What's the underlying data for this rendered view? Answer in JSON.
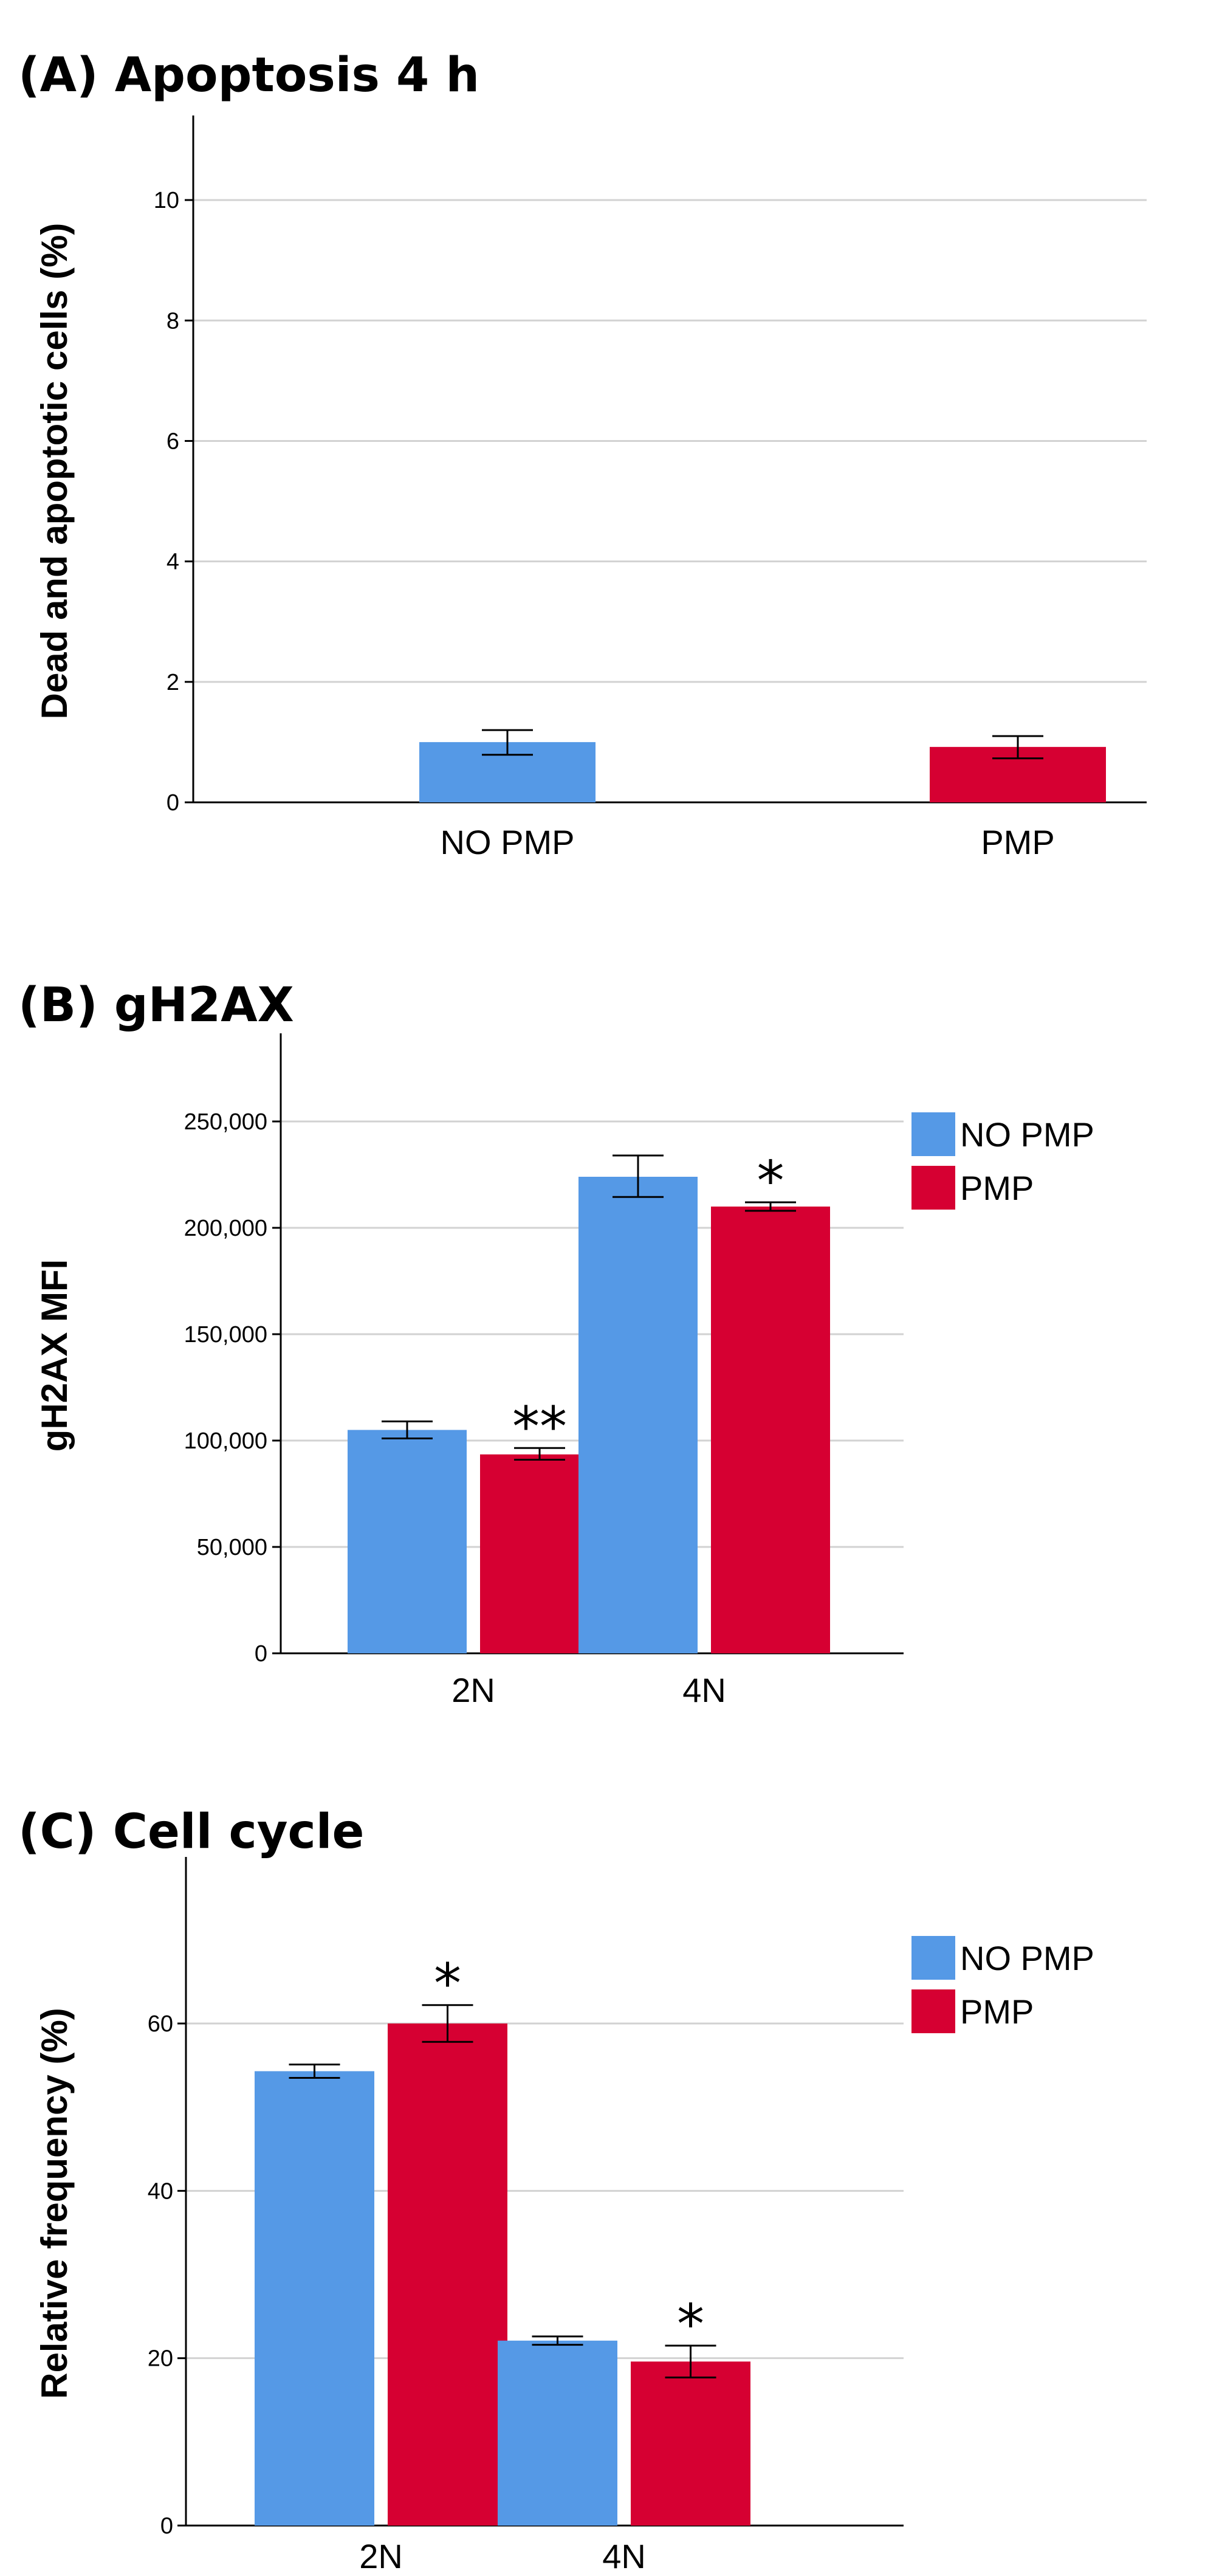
{
  "colors": {
    "no_pmp": "#5599e6",
    "pmp": "#d60032"
  },
  "chart_data": [
    {
      "type": "bar",
      "title": "(A) Apoptosis 4 h",
      "xlabel": "",
      "ylabel": "Dead and apoptotic cells (%)",
      "categories": [
        "NO PMP",
        "PMP"
      ],
      "values": [
        1.0,
        0.92
      ],
      "errors": [
        [
          0.79,
          1.2
        ],
        [
          0.73,
          1.1
        ]
      ],
      "bar_colors": [
        "#5599e6",
        "#d60032"
      ],
      "ylim": [
        0,
        11
      ],
      "yticks": [
        0,
        2,
        4,
        6,
        8,
        10
      ],
      "ytick_labels": [
        "0",
        "2",
        "4",
        "6",
        "8",
        "10"
      ],
      "grid": true,
      "legend": null
    },
    {
      "type": "bar",
      "title": "(B) gH2AX",
      "xlabel": "",
      "ylabel": "gH2AX MFI",
      "categories": [
        "2N",
        "4N"
      ],
      "series": [
        {
          "name": "NO PMP",
          "color": "#5599e6",
          "values": [
            105000,
            224000
          ],
          "errors": [
            [
              101000,
              109000
            ],
            [
              214500,
              234000
            ]
          ],
          "sig": [
            "",
            ""
          ]
        },
        {
          "name": "PMP",
          "color": "#d60032",
          "values": [
            93500,
            210000
          ],
          "errors": [
            [
              91000,
              96500
            ],
            [
              208000,
              212000
            ]
          ],
          "sig": [
            "**",
            "*"
          ]
        }
      ],
      "ylim": [
        0,
        280000
      ],
      "yticks": [
        0,
        50000,
        100000,
        150000,
        200000,
        250000
      ],
      "ytick_labels": [
        "0",
        "50,000",
        "100,000",
        "150,000",
        "200,000",
        "250,000"
      ],
      "grid": true,
      "legend": "right"
    },
    {
      "type": "bar",
      "title": "(C) Cell cycle",
      "xlabel": "",
      "ylabel": "Relative frequency (%)",
      "categories": [
        "2N",
        "4N"
      ],
      "series": [
        {
          "name": "NO PMP",
          "color": "#5599e6",
          "values": [
            54.3,
            22.1
          ],
          "errors": [
            [
              53.5,
              55.1
            ],
            [
              21.6,
              22.6
            ]
          ],
          "sig": [
            "",
            ""
          ]
        },
        {
          "name": "PMP",
          "color": "#d60032",
          "values": [
            60.0,
            19.6
          ],
          "errors": [
            [
              57.8,
              62.2
            ],
            [
              17.7,
              21.5
            ]
          ],
          "sig": [
            "*",
            "*"
          ]
        }
      ],
      "ylim": [
        0,
        77
      ],
      "yticks": [
        0,
        20,
        40,
        60
      ],
      "ytick_labels": [
        "0",
        "20",
        "40",
        "60"
      ],
      "grid": true,
      "legend": "right"
    }
  ]
}
